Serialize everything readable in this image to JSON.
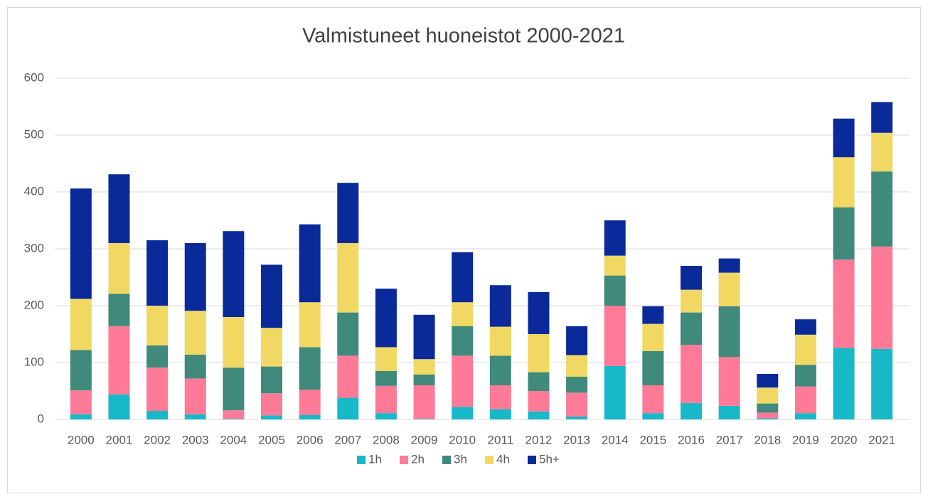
{
  "chart_data": {
    "type": "bar",
    "stacked": true,
    "title": "Valmistuneet huoneistot 2000-2021",
    "categories": [
      "2000",
      "2001",
      "2002",
      "2003",
      "2004",
      "2005",
      "2006",
      "2007",
      "2008",
      "2009",
      "2010",
      "2011",
      "2012",
      "2013",
      "2014",
      "2015",
      "2016",
      "2017",
      "2018",
      "2019",
      "2020",
      "2021"
    ],
    "series": [
      {
        "name": "1h",
        "color": "#17b8c8",
        "values": [
          9,
          44,
          15,
          9,
          1,
          7,
          8,
          38,
          11,
          1,
          22,
          18,
          14,
          5,
          94,
          11,
          29,
          24,
          2,
          11,
          126,
          124
        ]
      },
      {
        "name": "2h",
        "color": "#ff7a96",
        "values": [
          42,
          120,
          76,
          63,
          15,
          39,
          44,
          74,
          48,
          59,
          90,
          42,
          36,
          42,
          106,
          49,
          102,
          86,
          10,
          47,
          155,
          180
        ]
      },
      {
        "name": "3h",
        "color": "#3f8a7a",
        "values": [
          71,
          57,
          39,
          42,
          75,
          47,
          75,
          76,
          26,
          19,
          52,
          52,
          33,
          28,
          53,
          60,
          57,
          89,
          16,
          38,
          92,
          132
        ]
      },
      {
        "name": "4h",
        "color": "#f0d862",
        "values": [
          90,
          89,
          70,
          77,
          89,
          68,
          79,
          122,
          42,
          27,
          42,
          51,
          67,
          38,
          35,
          48,
          40,
          59,
          28,
          53,
          88,
          68
        ]
      },
      {
        "name": "5h+",
        "color": "#0a2a9a",
        "values": [
          194,
          121,
          115,
          119,
          151,
          111,
          137,
          106,
          103,
          78,
          88,
          73,
          74,
          51,
          62,
          31,
          42,
          25,
          24,
          27,
          68,
          54
        ]
      }
    ],
    "ylim": [
      0,
      600
    ],
    "yticks": [
      0,
      100,
      200,
      300,
      400,
      500,
      600
    ],
    "grid": true,
    "legend": "bottom"
  }
}
